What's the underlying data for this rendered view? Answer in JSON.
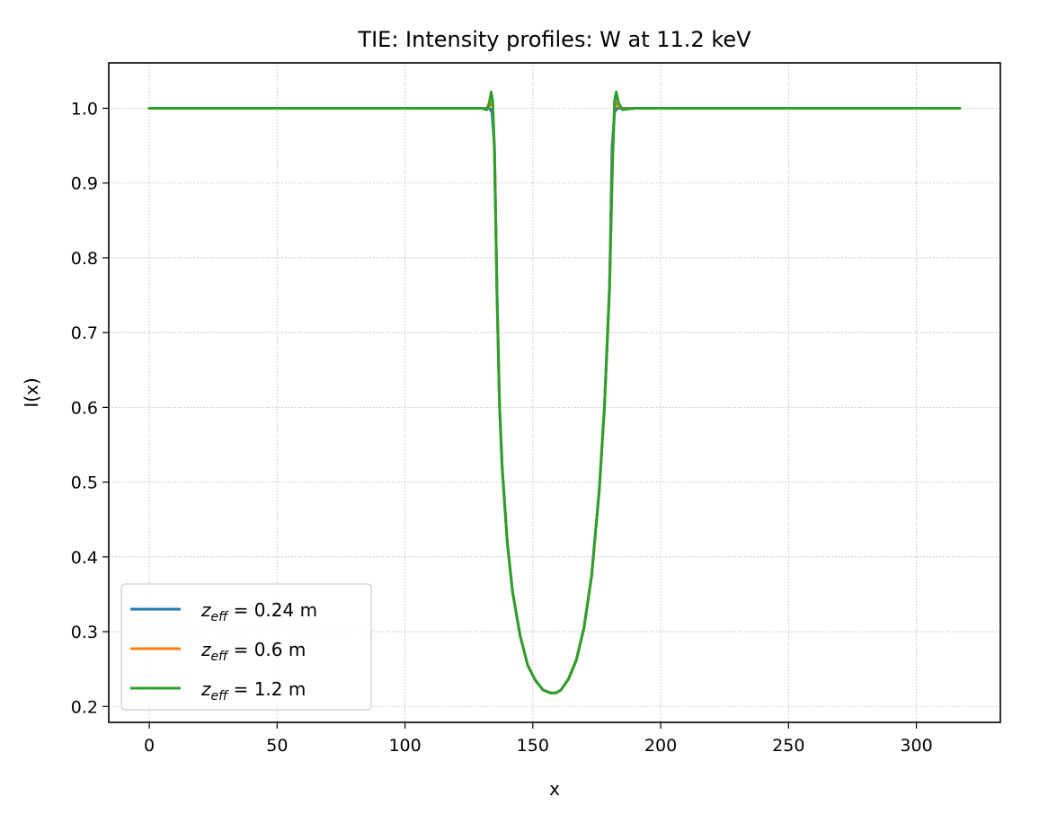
{
  "chart_data": {
    "type": "line",
    "title": "TIE: Intensity profiles: W at 11.2 keV",
    "xlabel": "x",
    "ylabel": "I(x)",
    "xlim": [
      -15.85,
      332.85
    ],
    "ylim": [
      0.1787,
      1.0607
    ],
    "xticks": [
      0,
      50,
      100,
      150,
      200,
      250,
      300
    ],
    "yticks": [
      0.2,
      0.3,
      0.4,
      0.5,
      0.6,
      0.7,
      0.8,
      0.9,
      1.0
    ],
    "xtick_labels": [
      "0",
      "50",
      "100",
      "150",
      "200",
      "250",
      "300"
    ],
    "ytick_labels": [
      "0.2",
      "0.3",
      "0.4",
      "0.5",
      "0.6",
      "0.7",
      "0.8",
      "0.9",
      "1.0"
    ],
    "grid": true,
    "legend_position": "lower-left",
    "series": [
      {
        "name_var": "z",
        "name_sub": "eff",
        "name_rest": " = 0.24 m",
        "color": "#1f77b4",
        "x": [
          0,
          130,
          132,
          133,
          134,
          135,
          136,
          137,
          138,
          140,
          142,
          145,
          148,
          151,
          154,
          157,
          159,
          161,
          164,
          167,
          170,
          173,
          176,
          178,
          180,
          181,
          182,
          183,
          185,
          190,
          317
        ],
        "y": [
          1.0,
          1.0,
          1.0,
          1.0,
          0.995,
          0.95,
          0.75,
          0.6,
          0.52,
          0.42,
          0.355,
          0.295,
          0.255,
          0.235,
          0.222,
          0.218,
          0.218,
          0.222,
          0.237,
          0.262,
          0.305,
          0.375,
          0.49,
          0.6,
          0.76,
          0.95,
          0.995,
          1.0,
          1.0,
          1.0,
          1.0
        ]
      },
      {
        "name_var": "z",
        "name_sub": "eff",
        "name_rest": " = 0.6 m",
        "color": "#ff7f0e",
        "x": [
          0,
          130,
          132,
          133,
          133.7,
          134.3,
          135,
          136,
          137,
          138,
          140,
          142,
          145,
          148,
          151,
          154,
          157,
          159,
          161,
          164,
          167,
          170,
          173,
          176,
          178,
          180,
          181.2,
          182,
          182.6,
          183.4,
          185,
          190,
          317
        ],
        "y": [
          1.0,
          1.0,
          0.999,
          1.003,
          1.007,
          1.003,
          0.945,
          0.75,
          0.6,
          0.52,
          0.42,
          0.355,
          0.295,
          0.255,
          0.235,
          0.222,
          0.218,
          0.218,
          0.222,
          0.237,
          0.262,
          0.305,
          0.375,
          0.49,
          0.6,
          0.76,
          0.94,
          1.003,
          1.007,
          1.003,
          0.999,
          1.0,
          1.0
        ]
      },
      {
        "name_var": "z",
        "name_sub": "eff",
        "name_rest": " = 1.2 m",
        "color": "#2ca02c",
        "x": [
          0,
          130,
          132,
          133,
          133.7,
          134.3,
          135,
          136,
          137,
          138,
          140,
          142,
          145,
          148,
          151,
          154,
          157,
          159,
          161,
          164,
          167,
          170,
          173,
          176,
          178,
          180,
          181.2,
          182,
          182.6,
          183.4,
          185,
          190,
          317
        ],
        "y": [
          1.0,
          1.0,
          0.998,
          1.008,
          1.022,
          1.01,
          0.94,
          0.75,
          0.6,
          0.52,
          0.42,
          0.355,
          0.295,
          0.255,
          0.235,
          0.222,
          0.218,
          0.218,
          0.222,
          0.237,
          0.262,
          0.305,
          0.375,
          0.49,
          0.6,
          0.76,
          0.93,
          1.01,
          1.022,
          1.008,
          0.998,
          1.0,
          1.0
        ]
      }
    ]
  }
}
